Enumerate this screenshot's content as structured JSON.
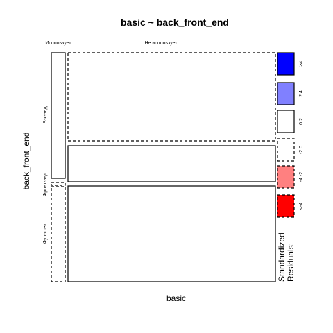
{
  "chart_data": {
    "type": "mosaic",
    "title": "basic ~ back_front_end",
    "xlabel": "basic",
    "ylabel": "back_front_end",
    "x_categories": [
      "Использует",
      "Не использует"
    ],
    "y_categories": [
      "Бэк-энд",
      "Фронт-энд",
      "Фул-стек"
    ],
    "cells": [
      {
        "x": "Использует",
        "y": "Бэк-энд",
        "residual_class": "0:2",
        "border": "solid"
      },
      {
        "x": "Использует",
        "y": "Фронт-энд",
        "residual_class": "-2:0",
        "border": "dashed"
      },
      {
        "x": "Использует",
        "y": "Фул-стек",
        "residual_class": "-2:0",
        "border": "dashed"
      },
      {
        "x": "Не использует",
        "y": "Бэк-энд",
        "residual_class": "-2:0",
        "border": "dashed"
      },
      {
        "x": "Не использует",
        "y": "Фронт-энд",
        "residual_class": "0:2",
        "border": "solid"
      },
      {
        "x": "Не использует",
        "y": "Фул-стек",
        "residual_class": "0:2",
        "border": "solid"
      }
    ],
    "legend": {
      "title": "Standardized\nResiduals:",
      "position": "right",
      "items": [
        {
          "label": ">4",
          "color": "#0000ff",
          "border": "solid"
        },
        {
          "label": "2:4",
          "color": "#8080ff",
          "border": "solid"
        },
        {
          "label": "0:2",
          "color": "#ffffff",
          "border": "solid"
        },
        {
          "label": "-2:0",
          "color": "#ffffff",
          "border": "dashed"
        },
        {
          "label": "-4:-2",
          "color": "#ff8080",
          "border": "dashed"
        },
        {
          "label": "<-4",
          "color": "#ff0000",
          "border": "dashed"
        }
      ]
    }
  }
}
